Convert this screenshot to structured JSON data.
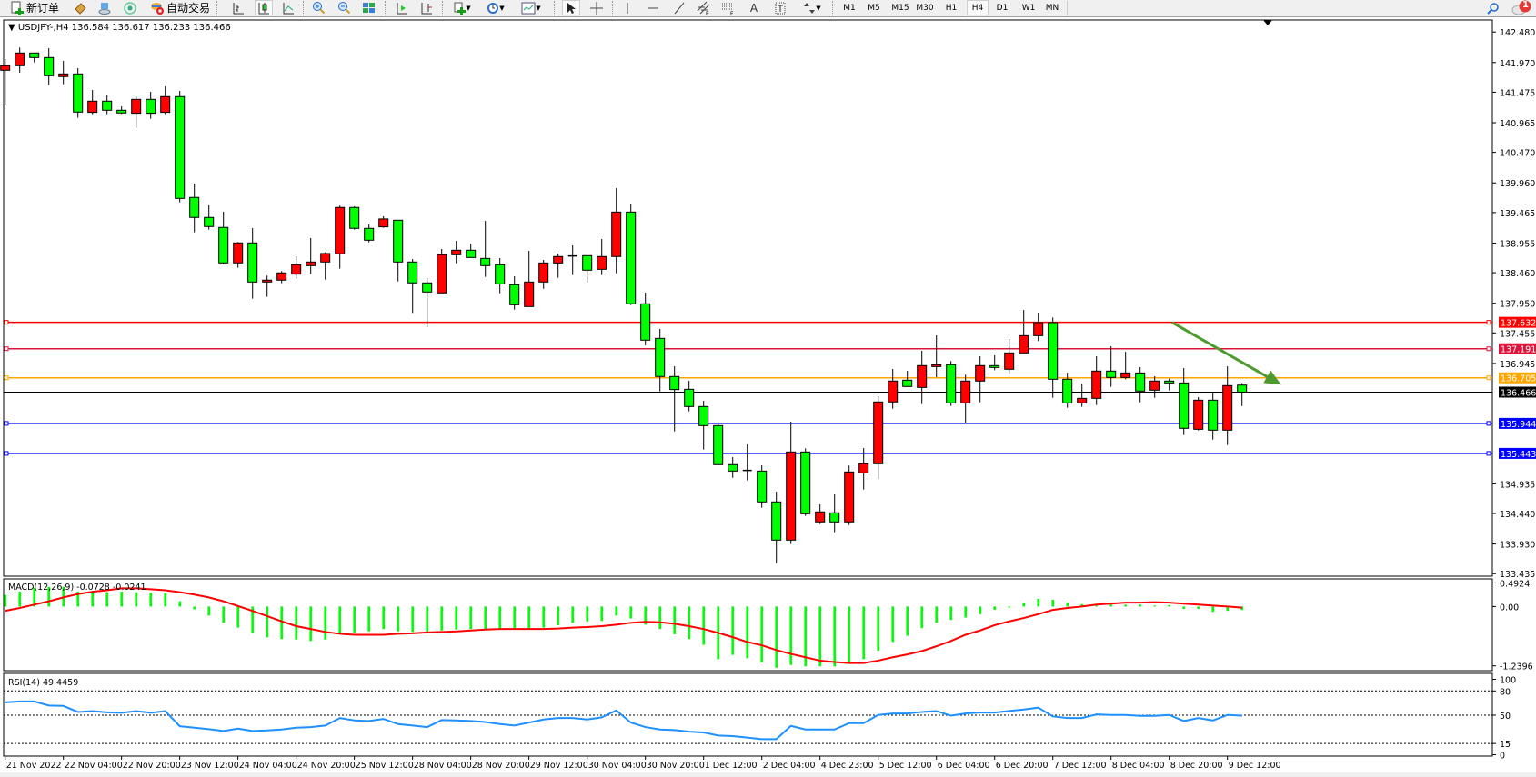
{
  "toolbar": {
    "new_order_label": "新订单",
    "auto_trading_label": "自动交易",
    "timeframes": [
      "M1",
      "M5",
      "M15",
      "M30",
      "H1",
      "H4",
      "D1",
      "W1",
      "MN"
    ],
    "selected_timeframe": "H4",
    "notification_count": "1",
    "icons": [
      "new-order-icon",
      "market-watch-icon",
      "data-window-icon",
      "navigator-icon",
      "auto-trading-icon",
      "bar-chart-icon",
      "candlestick-icon",
      "line-chart-icon",
      "zoom-in-icon",
      "zoom-out-icon",
      "tile-windows-icon",
      "auto-scroll-icon",
      "chart-shift-icon",
      "indicators-icon",
      "periods-icon",
      "templates-icon",
      "cursor-icon",
      "crosshair-icon",
      "vertical-line-icon",
      "horizontal-line-icon",
      "trendline-icon",
      "equidistant-channel-icon",
      "fibonacci-icon",
      "text-icon",
      "text-label-icon",
      "arrows-icon",
      "search-icon",
      "notification-icon"
    ]
  },
  "chart_header": {
    "symbol_line": "USDJPY-,H4  136.584 136.617 136.233 136.466"
  },
  "macd_header": "MACD(12,26,9) -0.0728 -0.0241",
  "rsi_header": "RSI(14) 49.4459",
  "colors": {
    "bull_candle": "#ff0000",
    "bear_candle": "#00ff00",
    "macd_histogram": "#00ff00",
    "macd_signal": "#ff0000",
    "rsi_line": "#1e90ff",
    "arrow": "#4e9a2e"
  },
  "chart_data": [
    {
      "type": "candlestick",
      "symbol": "USDJPY-",
      "timeframe": "H4",
      "ylim": [
        133.393,
        142.68
      ],
      "price_ticks": [
        "142.480",
        "141.970",
        "141.475",
        "140.965",
        "140.470",
        "139.960",
        "139.465",
        "138.955",
        "138.460",
        "137.950",
        "137.455",
        "136.945",
        "134.935",
        "134.440",
        "133.930",
        "133.435"
      ],
      "x_tick_labels": [
        {
          "bar": 0,
          "label": "21 Nov 2022"
        },
        {
          "bar": 4,
          "label": "22 Nov 04:00"
        },
        {
          "bar": 8,
          "label": "22 Nov 20:00"
        },
        {
          "bar": 12,
          "label": "23 Nov 12:00"
        },
        {
          "bar": 16,
          "label": "24 Nov 04:00"
        },
        {
          "bar": 20,
          "label": "24 Nov 20:00"
        },
        {
          "bar": 24,
          "label": "25 Nov 12:00"
        },
        {
          "bar": 28,
          "label": "28 Nov 04:00"
        },
        {
          "bar": 32,
          "label": "28 Nov 20:00"
        },
        {
          "bar": 36,
          "label": "29 Nov 12:00"
        },
        {
          "bar": 40,
          "label": "30 Nov 04:00"
        },
        {
          "bar": 44,
          "label": "30 Nov 20:00"
        },
        {
          "bar": 48,
          "label": "1 Dec 12:00"
        },
        {
          "bar": 52,
          "label": "2 Dec 04:00"
        },
        {
          "bar": 56,
          "label": "4 Dec 23:00"
        },
        {
          "bar": 60,
          "label": "5 Dec 12:00"
        },
        {
          "bar": 64,
          "label": "6 Dec 04:00"
        },
        {
          "bar": 68,
          "label": "6 Dec 20:00"
        },
        {
          "bar": 72,
          "label": "7 Dec 12:00"
        },
        {
          "bar": 76,
          "label": "8 Dec 04:00"
        },
        {
          "bar": 80,
          "label": "8 Dec 20:00"
        },
        {
          "bar": 84,
          "label": "9 Dec 12:00"
        }
      ],
      "ohlc_fields": [
        "open",
        "high",
        "low",
        "close"
      ],
      "candles": [
        [
          141.841,
          142.028,
          141.269,
          141.917
        ],
        [
          141.917,
          142.22,
          141.801,
          142.129
        ],
        [
          142.129,
          142.129,
          141.972,
          142.053
        ],
        [
          142.053,
          142.21,
          141.593,
          141.75
        ],
        [
          141.735,
          141.998,
          141.608,
          141.78
        ],
        [
          141.78,
          141.876,
          141.047,
          141.143
        ],
        [
          141.138,
          141.512,
          141.108,
          141.325
        ],
        [
          141.325,
          141.436,
          141.108,
          141.173
        ],
        [
          141.173,
          141.239,
          141.113,
          141.128
        ],
        [
          141.123,
          141.406,
          140.88,
          141.355
        ],
        [
          141.355,
          141.482,
          141.032,
          141.123
        ],
        [
          141.138,
          141.573,
          141.108,
          141.401
        ],
        [
          141.401,
          141.497,
          139.636,
          139.701
        ],
        [
          139.717,
          139.949,
          139.135,
          139.383
        ],
        [
          139.383,
          139.585,
          139.18,
          139.231
        ],
        [
          139.216,
          139.479,
          138.604,
          138.624
        ],
        [
          138.624,
          138.973,
          138.543,
          138.958
        ],
        [
          138.958,
          139.206,
          138.027,
          138.305
        ],
        [
          138.305,
          138.412,
          138.058,
          138.336
        ],
        [
          138.336,
          138.487,
          138.285,
          138.457
        ],
        [
          138.437,
          138.735,
          138.361,
          138.594
        ],
        [
          138.578,
          139.039,
          138.437,
          138.639
        ],
        [
          138.639,
          138.801,
          138.346,
          138.781
        ],
        [
          138.776,
          139.58,
          138.528,
          139.55
        ],
        [
          139.55,
          139.57,
          139.18,
          139.201
        ],
        [
          139.201,
          139.266,
          138.968,
          139.003
        ],
        [
          139.226,
          139.403,
          139.211,
          139.358
        ],
        [
          139.337,
          139.337,
          138.315,
          138.639
        ],
        [
          138.639,
          138.69,
          137.789,
          138.29
        ],
        [
          138.29,
          138.371,
          137.552,
          138.138
        ],
        [
          138.123,
          138.856,
          138.123,
          138.76
        ],
        [
          138.76,
          138.993,
          138.618,
          138.836
        ],
        [
          138.836,
          138.942,
          138.714,
          138.714
        ],
        [
          138.699,
          139.326,
          138.391,
          138.578
        ],
        [
          138.593,
          138.704,
          138.118,
          138.274
        ],
        [
          138.259,
          138.401,
          137.844,
          137.925
        ],
        [
          137.895,
          138.826,
          137.895,
          138.305
        ],
        [
          138.305,
          138.674,
          138.193,
          138.623
        ],
        [
          138.623,
          138.78,
          138.376,
          138.73
        ],
        [
          138.74,
          138.917,
          138.421,
          138.74
        ],
        [
          138.745,
          138.745,
          138.3,
          138.502
        ],
        [
          138.517,
          139.023,
          138.421,
          138.73
        ],
        [
          138.73,
          139.873,
          138.451,
          139.473
        ],
        [
          139.473,
          139.615,
          137.92,
          137.941
        ],
        [
          137.941,
          138.128,
          137.248,
          137.334
        ],
        [
          137.364,
          137.521,
          136.479,
          136.727
        ],
        [
          136.727,
          136.899,
          135.811,
          136.509
        ],
        [
          136.514,
          136.656,
          136.145,
          136.226
        ],
        [
          136.226,
          136.322,
          135.508,
          135.907
        ],
        [
          135.907,
          135.932,
          135.255,
          135.255
        ],
        [
          135.255,
          135.381,
          135.037,
          135.148
        ],
        [
          135.159,
          135.594,
          134.992,
          135.159
        ],
        [
          135.148,
          135.244,
          134.536,
          134.633
        ],
        [
          134.633,
          134.805,
          133.611,
          133.995
        ],
        [
          133.995,
          135.973,
          133.93,
          135.467
        ],
        [
          135.467,
          135.528,
          134.4,
          134.435
        ],
        [
          134.299,
          134.592,
          134.263,
          134.466
        ],
        [
          134.451,
          134.759,
          134.127,
          134.299
        ],
        [
          134.299,
          135.24,
          134.248,
          135.133
        ],
        [
          135.118,
          135.533,
          134.84,
          135.27
        ],
        [
          135.27,
          136.398,
          135.007,
          136.302
        ],
        [
          136.302,
          136.853,
          136.19,
          136.651
        ],
        [
          136.666,
          136.823,
          136.56,
          136.56
        ],
        [
          136.544,
          137.157,
          136.266,
          136.909
        ],
        [
          136.893,
          137.414,
          136.716,
          136.924
        ],
        [
          136.924,
          136.985,
          136.236,
          136.286
        ],
        [
          136.286,
          136.757,
          135.953,
          136.651
        ],
        [
          136.651,
          137.065,
          136.297,
          136.909
        ],
        [
          136.909,
          137.081,
          136.833,
          136.878
        ],
        [
          136.848,
          137.354,
          136.767,
          137.121
        ],
        [
          137.121,
          137.839,
          137.121,
          137.409
        ],
        [
          137.409,
          137.794,
          137.318,
          137.627
        ],
        [
          137.627,
          137.713,
          136.372,
          136.681
        ],
        [
          136.681,
          136.792,
          136.206,
          136.286
        ],
        [
          136.286,
          136.61,
          136.221,
          136.362
        ],
        [
          136.362,
          137.065,
          136.251,
          136.818
        ],
        [
          136.818,
          137.232,
          136.555,
          136.711
        ],
        [
          136.711,
          137.141,
          136.681,
          136.787
        ],
        [
          136.787,
          136.883,
          136.297,
          136.484
        ],
        [
          136.499,
          136.732,
          136.372,
          136.651
        ],
        [
          136.651,
          136.691,
          136.494,
          136.62
        ],
        [
          136.62,
          136.868,
          135.75,
          135.862
        ],
        [
          135.846,
          136.383,
          135.826,
          136.332
        ],
        [
          136.332,
          136.453,
          135.674,
          135.831
        ],
        [
          135.831,
          136.898,
          135.583,
          136.575
        ],
        [
          136.584,
          136.617,
          136.233,
          136.466
        ]
      ],
      "horizontal_lines": [
        {
          "price": 137.632,
          "label": "137.632",
          "color": "#ff0000"
        },
        {
          "price": 137.191,
          "label": "137.191",
          "color": "#dc143c"
        },
        {
          "price": 136.705,
          "label": "136.705",
          "color": "#ffa500"
        },
        {
          "price": 135.944,
          "label": "135.944",
          "color": "#0000ff"
        },
        {
          "price": 135.443,
          "label": "135.443",
          "color": "#0000ff"
        }
      ],
      "bid_line": {
        "price": 136.466,
        "label": "136.466",
        "color": "#000000"
      },
      "annotation": {
        "type": "arrow",
        "from": {
          "bar": 80.2,
          "price": 137.63
        },
        "to": {
          "bar": 87.7,
          "price": 136.59
        },
        "color": "#4e9a2e"
      }
    },
    {
      "type": "bar+line",
      "indicator": "MACD(12,26,9)",
      "ylim": [
        -1.34,
        0.577
      ],
      "y_tick_labels": [
        "0.4924",
        "0.00",
        "-1.2396"
      ],
      "y_ticks": [
        0.4924,
        0.0,
        -1.2396
      ],
      "histogram": [
        0.24,
        0.31,
        0.39,
        0.41,
        0.41,
        0.31,
        0.31,
        0.3,
        0.31,
        0.3,
        0.29,
        0.28,
        0.11,
        -0.06,
        -0.19,
        -0.34,
        -0.44,
        -0.55,
        -0.645,
        -0.68,
        -0.69,
        -0.72,
        -0.69,
        -0.55,
        -0.54,
        -0.52,
        -0.47,
        -0.52,
        -0.53,
        -0.53,
        -0.5,
        -0.48,
        -0.47,
        -0.47,
        -0.47,
        -0.47,
        -0.47,
        -0.44,
        -0.39,
        -0.34,
        -0.31,
        -0.3,
        -0.19,
        -0.25,
        -0.38,
        -0.47,
        -0.58,
        -0.68,
        -0.8,
        -1.1,
        -1.01,
        -1.08,
        -1.17,
        -1.28,
        -1.22,
        -1.25,
        -1.25,
        -1.25,
        -1.19,
        -1.1,
        -0.92,
        -0.74,
        -0.61,
        -0.45,
        -0.34,
        -0.28,
        -0.23,
        -0.16,
        -0.07,
        -0.01,
        0.07,
        0.16,
        0.14,
        0.08,
        0.05,
        0.04,
        0.04,
        0.04,
        0.04,
        0.02,
        0.03,
        -0.05,
        -0.05,
        -0.11,
        -0.09,
        -0.0728
      ],
      "signal": [
        -0.09,
        -0.03,
        0.04,
        0.11,
        0.19,
        0.26,
        0.31,
        0.34,
        0.38,
        0.38,
        0.36,
        0.34,
        0.3,
        0.25,
        0.19,
        0.11,
        0.01,
        -0.09,
        -0.2,
        -0.31,
        -0.41,
        -0.47,
        -0.53,
        -0.57,
        -0.59,
        -0.59,
        -0.59,
        -0.57,
        -0.56,
        -0.54,
        -0.53,
        -0.52,
        -0.5,
        -0.48,
        -0.47,
        -0.47,
        -0.47,
        -0.47,
        -0.46,
        -0.44,
        -0.43,
        -0.41,
        -0.38,
        -0.34,
        -0.32,
        -0.33,
        -0.36,
        -0.41,
        -0.47,
        -0.55,
        -0.64,
        -0.74,
        -0.81,
        -0.91,
        -0.99,
        -1.06,
        -1.13,
        -1.16,
        -1.18,
        -1.18,
        -1.13,
        -1.06,
        -1.0,
        -0.93,
        -0.83,
        -0.72,
        -0.59,
        -0.5,
        -0.39,
        -0.31,
        -0.24,
        -0.16,
        -0.07,
        -0.03,
        0.0,
        0.04,
        0.06,
        0.08,
        0.08,
        0.09,
        0.08,
        0.06,
        0.04,
        0.02,
        0.0,
        -0.0241
      ]
    },
    {
      "type": "line",
      "indicator": "RSI(14)",
      "ylim": [
        0,
        100
      ],
      "y_tick_labels": [
        "100",
        "80",
        "50",
        "15",
        "0"
      ],
      "y_ticks": [
        100,
        80,
        50,
        15,
        0
      ],
      "levels": [
        80,
        50,
        15
      ],
      "values": [
        65.9,
        67,
        67,
        62,
        61.5,
        54,
        55,
        53.5,
        53,
        55,
        53,
        55,
        36.4,
        34.6,
        32.7,
        30.5,
        33.4,
        30.5,
        31.2,
        32.3,
        34.6,
        35.3,
        37.2,
        46.5,
        43.5,
        42.8,
        45.4,
        39,
        37.2,
        35.3,
        43.9,
        43.5,
        42.8,
        41.6,
        39,
        37.2,
        40.9,
        44.7,
        46.5,
        46.5,
        44.7,
        47.3,
        55.9,
        40.9,
        35.3,
        32.3,
        31.6,
        29.7,
        28.6,
        24.9,
        24.1,
        22.3,
        20.4,
        20.4,
        36.8,
        32.3,
        32.3,
        32.3,
        40.2,
        40.2,
        50.3,
        52.1,
        52.1,
        54,
        55,
        49.4,
        52.1,
        53.3,
        53.3,
        55.2,
        57,
        59.3,
        48.5,
        46.5,
        46.5,
        51,
        50.3,
        50.3,
        49.2,
        49.2,
        50.3,
        42.8,
        46.5,
        43.5,
        50.3,
        49.4459
      ]
    }
  ]
}
